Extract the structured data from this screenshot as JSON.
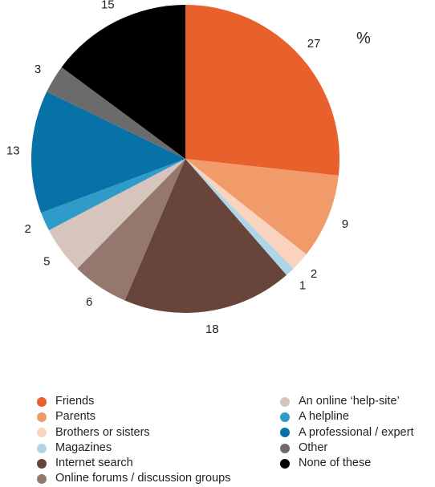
{
  "chart_data": {
    "type": "pie",
    "unit": "%",
    "legend_position": "bottom",
    "slices": [
      {
        "label": "Friends",
        "value": 27,
        "color": "#e8612c"
      },
      {
        "label": "Parents",
        "value": 9,
        "color": "#f19a6a"
      },
      {
        "label": "Brothers or sisters",
        "value": 2,
        "color": "#f9d3bd"
      },
      {
        "label": "Magazines",
        "value": 1,
        "color": "#aed6e8"
      },
      {
        "label": "Internet search",
        "value": 18,
        "color": "#67453b"
      },
      {
        "label": "Online forums / discussion groups",
        "value": 6,
        "color": "#95786d"
      },
      {
        "label": "An online ‘help-site’",
        "value": 5,
        "color": "#d6c4bd"
      },
      {
        "label": "A helpline",
        "value": 2,
        "color": "#2e9bc9"
      },
      {
        "label": "A professional / expert",
        "value": 13,
        "color": "#0871a8"
      },
      {
        "label": "Other",
        "value": 3,
        "color": "#6b6b6b"
      },
      {
        "label": "None of these",
        "value": 15,
        "color": "#000000"
      }
    ]
  }
}
